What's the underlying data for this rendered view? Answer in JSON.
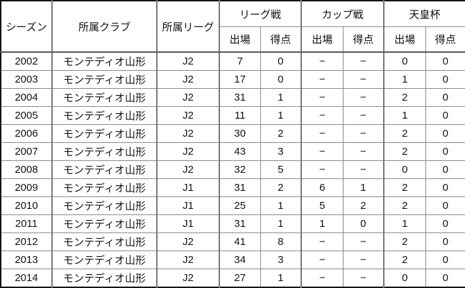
{
  "headers": {
    "season": "シーズン",
    "club": "所属クラブ",
    "league": "所属リーグ",
    "league_matches": "リーグ戦",
    "cup": "カップ戦",
    "emperors_cup": "天皇杯",
    "apps": "出場",
    "goals": "得点"
  },
  "rows": [
    {
      "season": "2002",
      "club": "モンテディオ山形",
      "league": "J2",
      "la": "7",
      "lg": "0",
      "ca": "−",
      "cg": "−",
      "ea": "0",
      "eg": "0"
    },
    {
      "season": "2003",
      "club": "モンテディオ山形",
      "league": "J2",
      "la": "17",
      "lg": "0",
      "ca": "−",
      "cg": "−",
      "ea": "1",
      "eg": "0"
    },
    {
      "season": "2004",
      "club": "モンテディオ山形",
      "league": "J2",
      "la": "31",
      "lg": "1",
      "ca": "−",
      "cg": "−",
      "ea": "2",
      "eg": "0"
    },
    {
      "season": "2005",
      "club": "モンテディオ山形",
      "league": "J2",
      "la": "11",
      "lg": "1",
      "ca": "−",
      "cg": "−",
      "ea": "1",
      "eg": "0"
    },
    {
      "season": "2006",
      "club": "モンテディオ山形",
      "league": "J2",
      "la": "30",
      "lg": "2",
      "ca": "−",
      "cg": "−",
      "ea": "2",
      "eg": "0"
    },
    {
      "season": "2007",
      "club": "モンテディオ山形",
      "league": "J2",
      "la": "43",
      "lg": "3",
      "ca": "−",
      "cg": "−",
      "ea": "2",
      "eg": "0"
    },
    {
      "season": "2008",
      "club": "モンテディオ山形",
      "league": "J2",
      "la": "32",
      "lg": "5",
      "ca": "−",
      "cg": "−",
      "ea": "0",
      "eg": "0"
    },
    {
      "season": "2009",
      "club": "モンテディオ山形",
      "league": "J1",
      "la": "31",
      "lg": "2",
      "ca": "6",
      "cg": "1",
      "ea": "2",
      "eg": "0"
    },
    {
      "season": "2010",
      "club": "モンテディオ山形",
      "league": "J1",
      "la": "25",
      "lg": "1",
      "ca": "5",
      "cg": "2",
      "ea": "2",
      "eg": "0"
    },
    {
      "season": "2011",
      "club": "モンテディオ山形",
      "league": "J1",
      "la": "31",
      "lg": "1",
      "ca": "1",
      "cg": "0",
      "ea": "1",
      "eg": "0"
    },
    {
      "season": "2012",
      "club": "モンテディオ山形",
      "league": "J2",
      "la": "41",
      "lg": "8",
      "ca": "−",
      "cg": "−",
      "ea": "2",
      "eg": "0"
    },
    {
      "season": "2013",
      "club": "モンテディオ山形",
      "league": "J2",
      "la": "34",
      "lg": "3",
      "ca": "−",
      "cg": "−",
      "ea": "2",
      "eg": "0"
    },
    {
      "season": "2014",
      "club": "モンテディオ山形",
      "league": "J2",
      "la": "27",
      "lg": "1",
      "ca": "−",
      "cg": "−",
      "ea": "0",
      "eg": "0"
    }
  ]
}
